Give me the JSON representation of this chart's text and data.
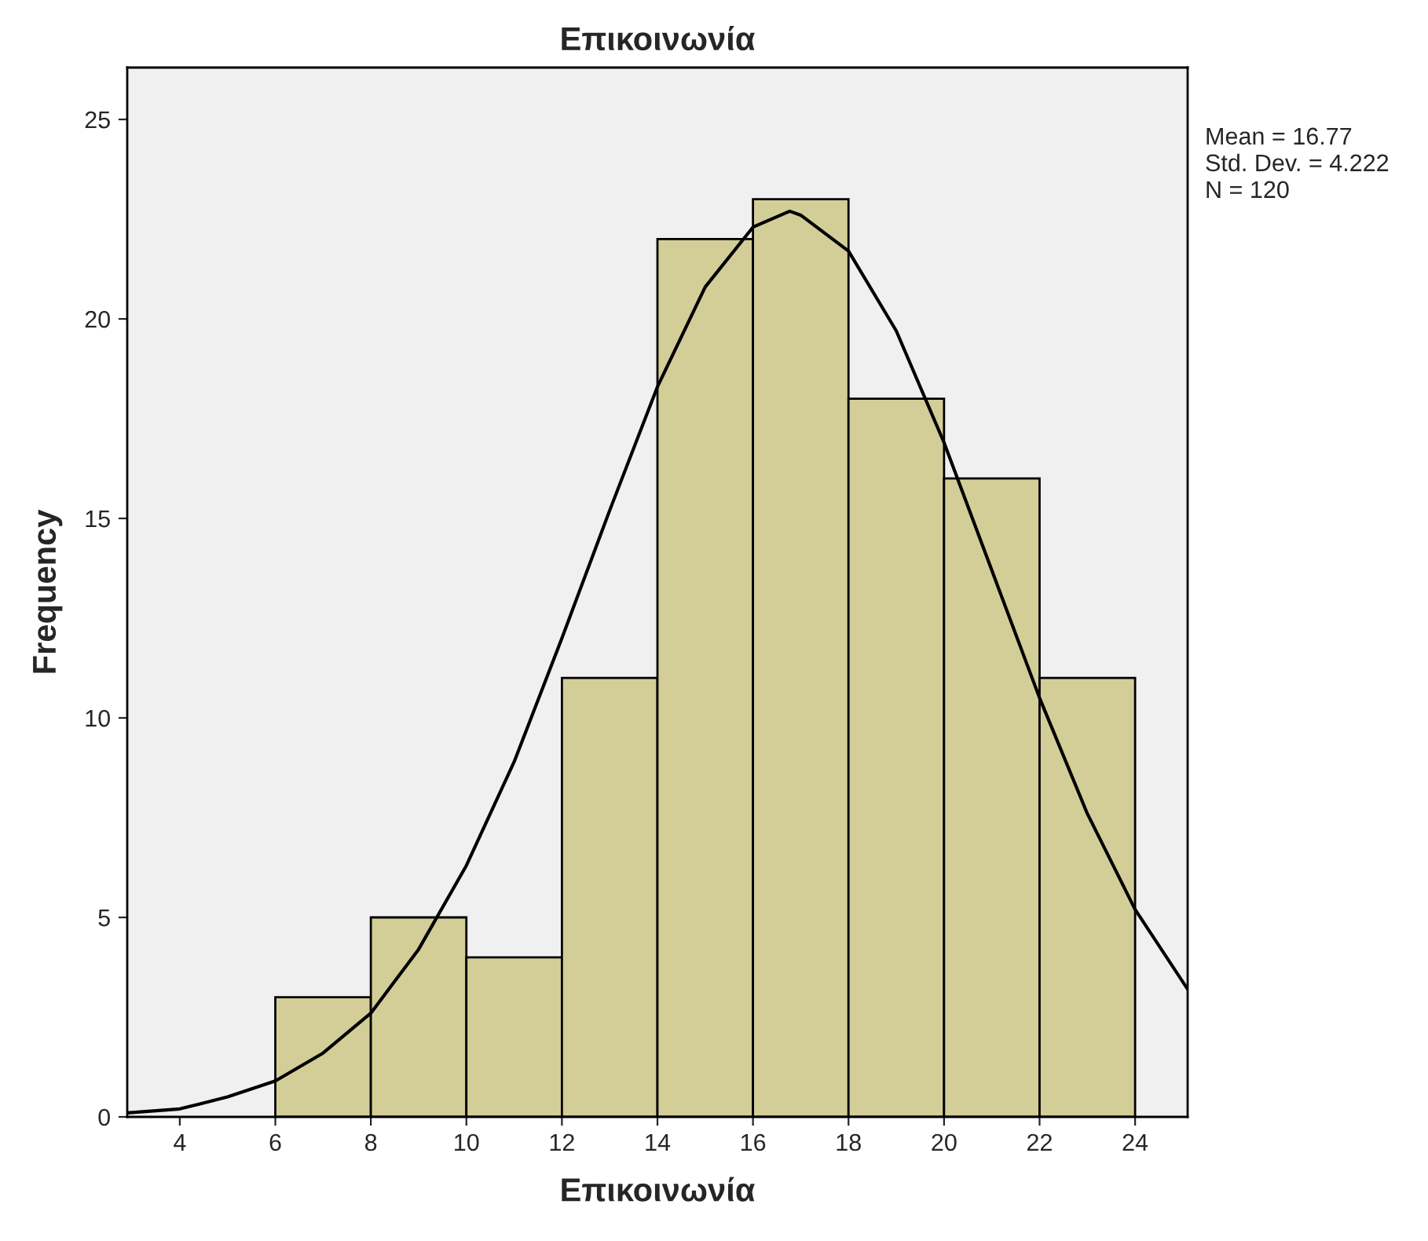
{
  "chart_data": {
    "type": "histogram",
    "title": "Επικοινωνία",
    "xlabel": "Επικοινωνία",
    "ylabel": "Frequency",
    "series": [
      {
        "type": "histogram",
        "color": "#d3ce97",
        "bins": [
          6,
          8,
          10,
          12,
          14,
          16,
          18,
          20,
          22,
          24
        ],
        "values": [
          3,
          5,
          4,
          11,
          22,
          23,
          18,
          16,
          11
        ]
      },
      {
        "type": "line",
        "color": "#000000",
        "x": [
          2.9,
          4,
          5,
          6,
          7,
          8,
          9,
          10,
          11,
          12,
          13,
          14,
          15,
          16,
          16.77,
          17,
          18,
          19,
          20,
          21,
          22,
          23,
          24,
          25.1
        ],
        "values": [
          0.1,
          0.2,
          0.5,
          0.9,
          1.6,
          2.6,
          4.2,
          6.3,
          8.9,
          12.0,
          15.2,
          18.3,
          20.8,
          22.3,
          22.7,
          22.6,
          21.7,
          19.7,
          16.9,
          13.7,
          10.5,
          7.6,
          5.2,
          3.2
        ]
      }
    ],
    "xlim": [
      2.9,
      25.1
    ],
    "ylim": [
      0,
      26.3
    ],
    "xticks": [
      4,
      6,
      8,
      10,
      12,
      14,
      16,
      18,
      20,
      22,
      24
    ],
    "yticks": [
      0,
      5,
      10,
      15,
      20,
      25
    ],
    "grid": false,
    "annotations": [
      "Mean = 16.77",
      "Std. Dev. = 4.222",
      "N = 120"
    ]
  }
}
